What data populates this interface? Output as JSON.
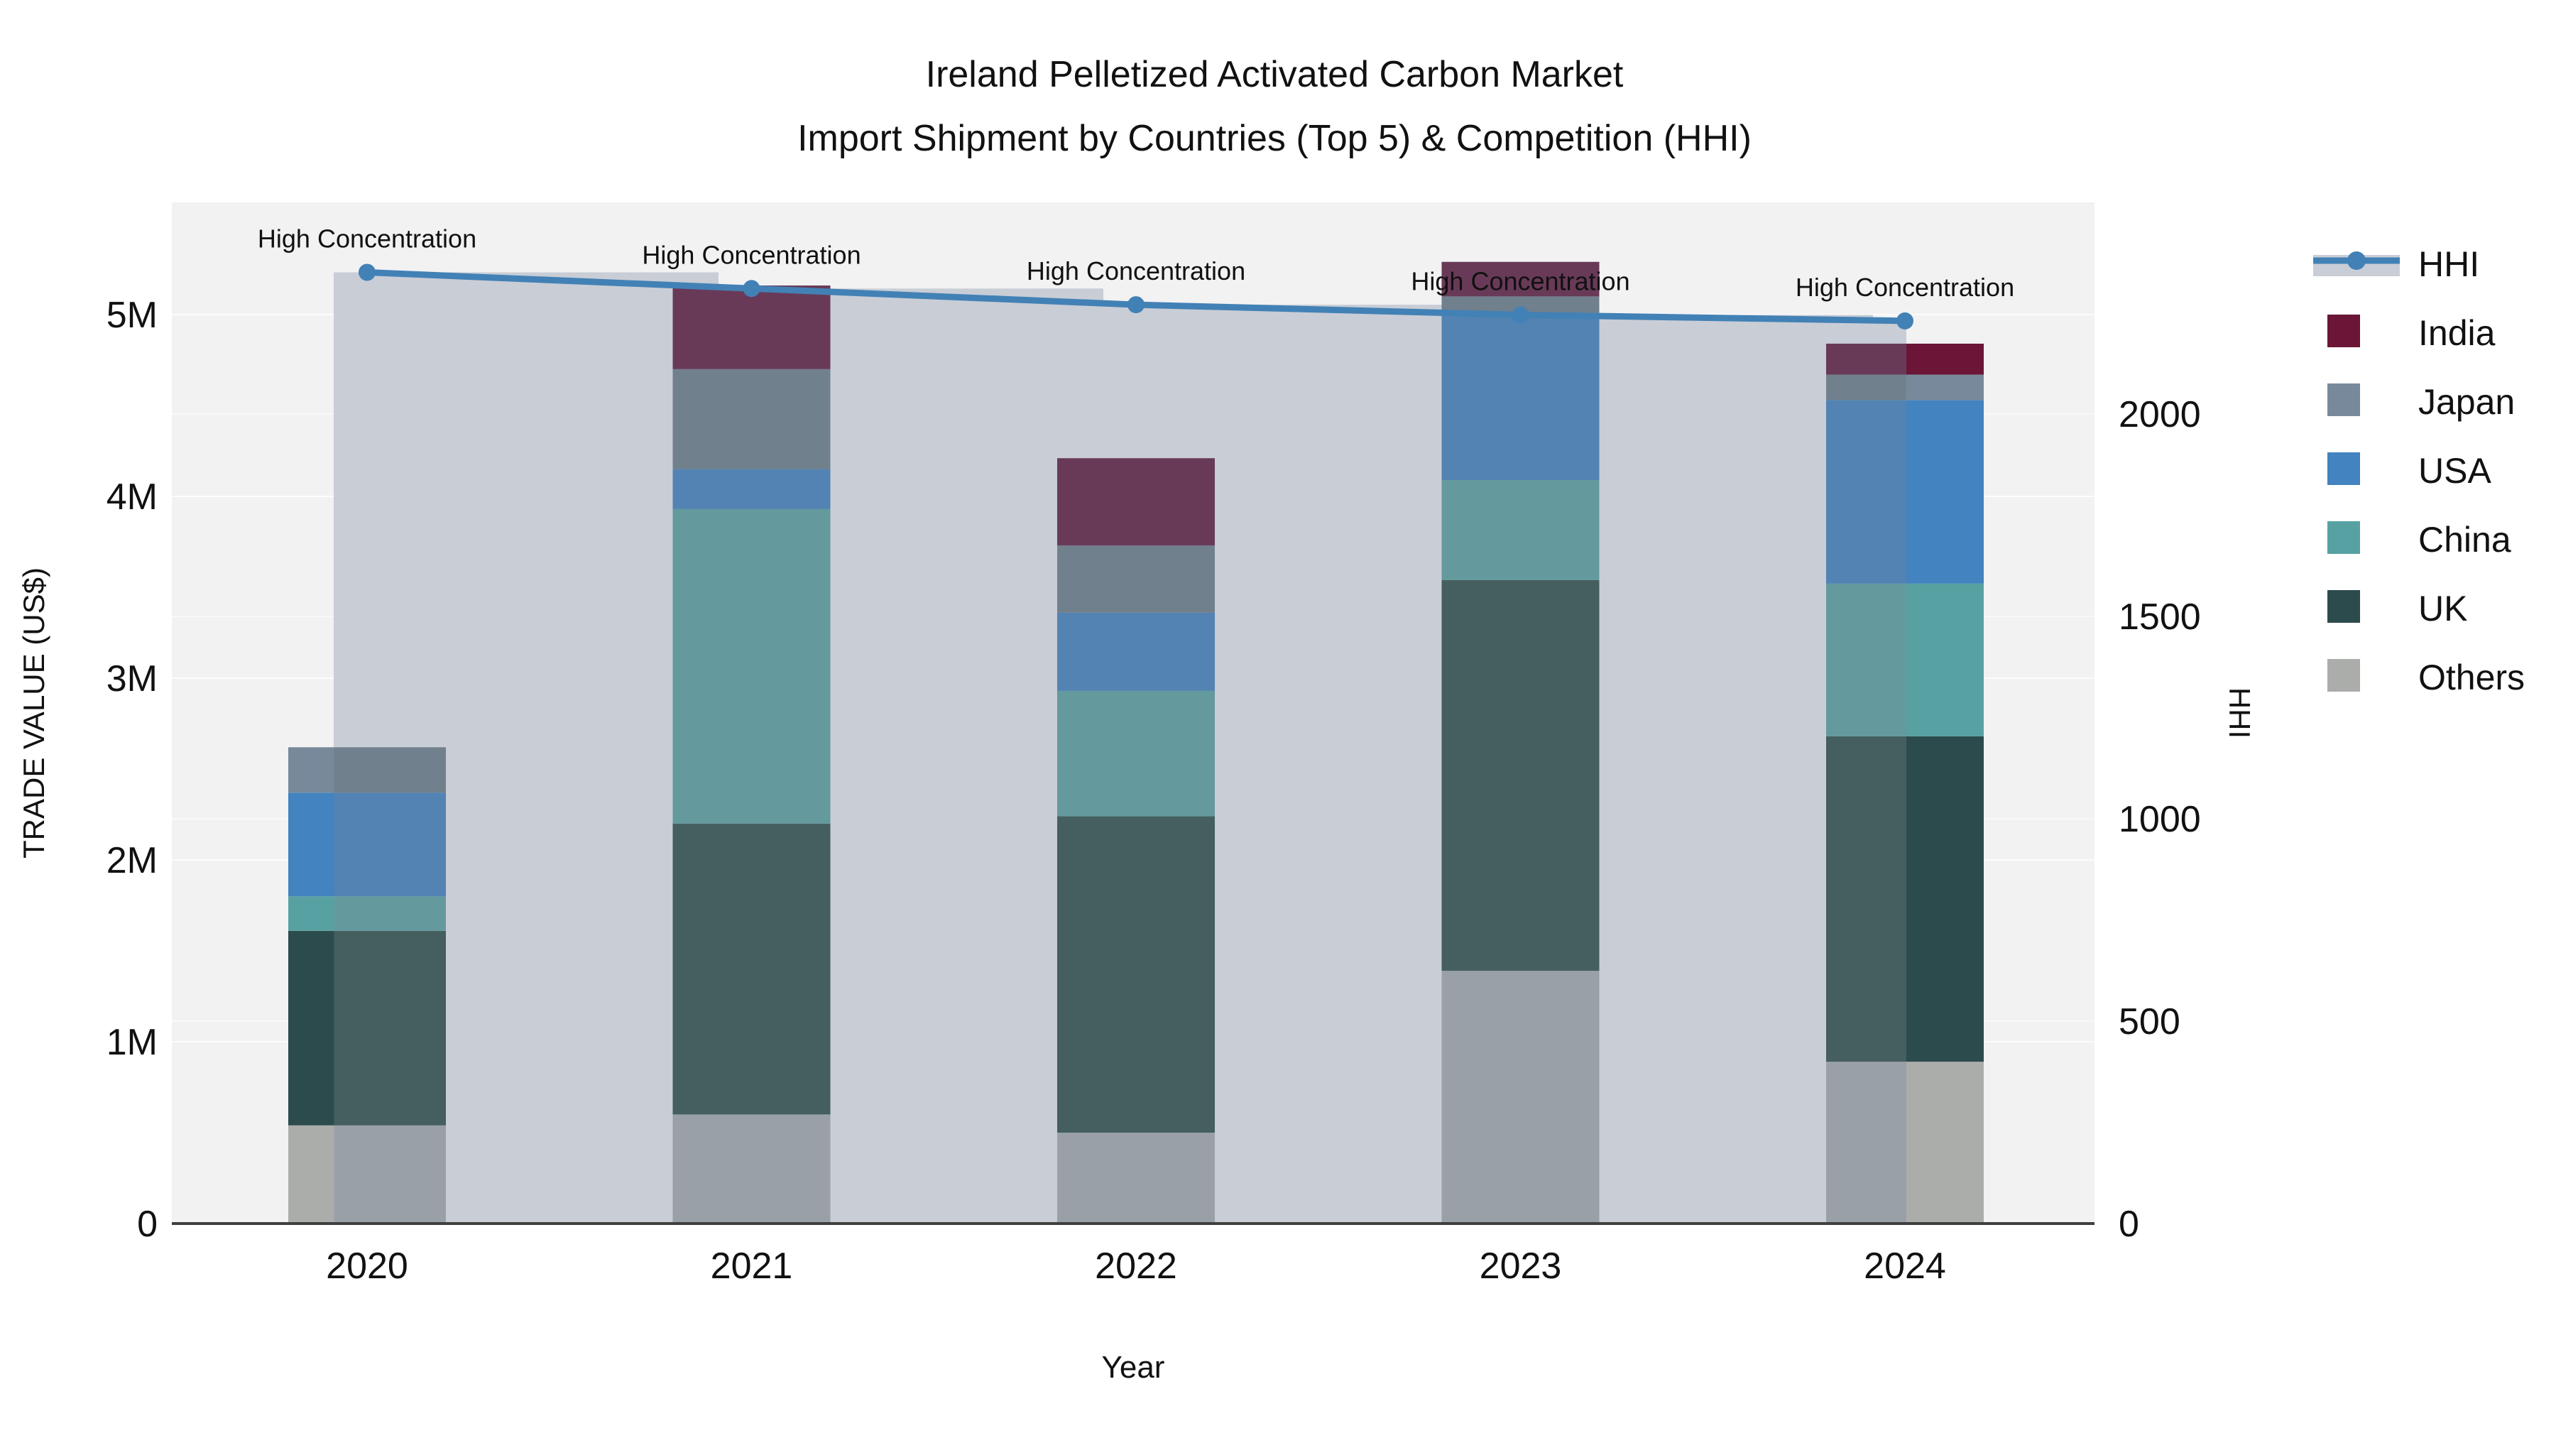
{
  "chart_data": {
    "type": "bar",
    "subtype": "stacked_bars_with_secondary_line",
    "title_line1": "Ireland Pelletized Activated Carbon Market",
    "title_line2": "Import Shipment by Countries (Top 5) & Competition (HHI)",
    "xlabel": "Year",
    "ylabel": "TRADE VALUE (US$)",
    "y2label": "HHI",
    "categories": [
      "2020",
      "2021",
      "2022",
      "2023",
      "2024"
    ],
    "stack_order": [
      "Others",
      "UK",
      "China",
      "USA",
      "Japan",
      "India"
    ],
    "series": [
      {
        "name": "India",
        "values": [
          0,
          460000,
          480000,
          190000,
          170000
        ]
      },
      {
        "name": "Japan",
        "values": [
          250000,
          550000,
          370000,
          90000,
          140000
        ]
      },
      {
        "name": "USA",
        "values": [
          570000,
          220000,
          430000,
          920000,
          1010000
        ]
      },
      {
        "name": "China",
        "values": [
          190000,
          1730000,
          690000,
          550000,
          840000
        ]
      },
      {
        "name": "UK",
        "values": [
          1070000,
          1600000,
          1740000,
          2150000,
          1790000
        ]
      },
      {
        "name": "Others",
        "values": [
          540000,
          600000,
          500000,
          1390000,
          890000
        ]
      }
    ],
    "line_series": {
      "name": "HHI",
      "values": [
        2350,
        2310,
        2270,
        2245,
        2230
      ]
    },
    "annotations": [
      "High Concentration",
      "High Concentration",
      "High Concentration",
      "High Concentration",
      "High Concentration"
    ],
    "yticks": [
      "0",
      "1M",
      "2M",
      "3M",
      "4M",
      "5M"
    ],
    "y2ticks": [
      "0",
      "500",
      "1000",
      "1500",
      "2000"
    ],
    "ylim": [
      0,
      5620000
    ],
    "y2lim": [
      0,
      2520
    ],
    "grid": true,
    "legend_position": "right"
  },
  "legend": {
    "items": [
      "HHI",
      "India",
      "Japan",
      "USA",
      "China",
      "UK",
      "Others"
    ]
  },
  "colors": {
    "line": "#4281B5",
    "band": "#C9CDD6",
    "plot_bg": "#F2F2F3",
    "axis_line": "#3F3F3F",
    "gridline": "#FFFFFF",
    "India": {
      "vivid": "#6B1537",
      "muted": "#683A58"
    },
    "Japan": {
      "vivid": "#78899B",
      "muted": "#71808D"
    },
    "USA": {
      "vivid": "#4383BF",
      "muted": "#5283B3"
    },
    "China": {
      "vivid": "#58A1A2",
      "muted": "#649A9D"
    },
    "UK": {
      "vivid": "#2C4B4D",
      "muted": "#455F5F"
    },
    "Others": {
      "vivid": "#ABADAA",
      "muted": "#9AA0A8"
    }
  }
}
